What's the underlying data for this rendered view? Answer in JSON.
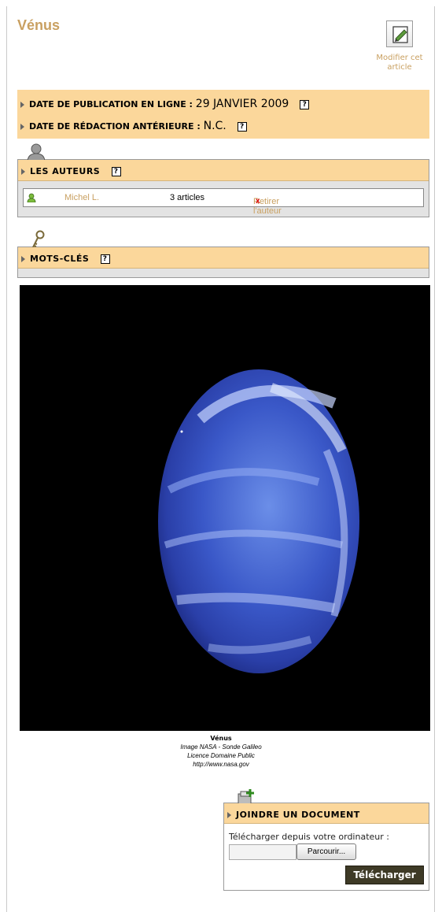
{
  "article": {
    "title": "Vénus",
    "edit_label": "Modifier cet article"
  },
  "dates": {
    "publication_label": "DATE DE PUBLICATION EN LIGNE :",
    "publication_value": "29 JANVIER 2009",
    "writing_label": "DATE DE RÉDACTION ANTÉRIEURE :",
    "writing_value": "N.C.",
    "help_glyph": "?"
  },
  "authors": {
    "heading": "LES AUTEURS",
    "help_glyph": "?",
    "items": [
      {
        "name": "Michel L.",
        "count": "3 articles",
        "remove_label": "Retirer l'auteur",
        "remove_glyph": "x"
      }
    ]
  },
  "keywords": {
    "heading": "MOTS-CLÉS",
    "help_glyph": "?"
  },
  "image": {
    "title": "Vénus",
    "lines": [
      "Image NASA - Sonde Galileo",
      "Licence Domaine Public",
      "http://www.nasa.gov"
    ]
  },
  "join_document": {
    "heading": "JOINDRE UN DOCUMENT",
    "upload_label": "Télécharger depuis votre ordinateur :",
    "browse_label": "Parcourir...",
    "submit_label": "Télécharger"
  },
  "icons": {
    "edit": "edit-article-icon",
    "author_section": "user-silhouette-icon",
    "keyword_section": "key-icon",
    "author_item": "user-icon",
    "document_section": "add-document-icon",
    "triangle": "disclosure-triangle-icon"
  },
  "colors": {
    "title": "#c9a061",
    "section_bar": "#fbd79b",
    "panel_bg": "#e3e3e3",
    "submit_bg": "#3e3a26",
    "remove_x": "#dd0000"
  }
}
